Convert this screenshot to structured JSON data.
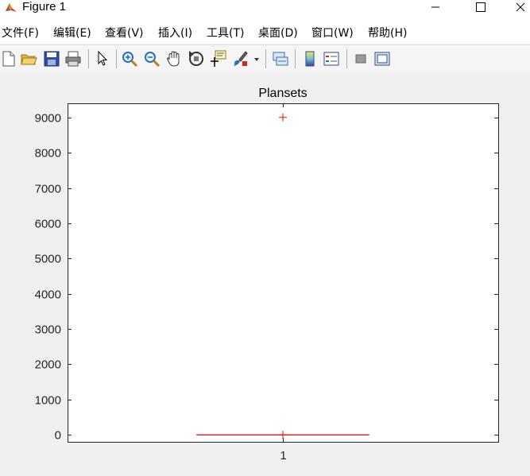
{
  "window": {
    "title": "Figure 1"
  },
  "menu": {
    "items": [
      {
        "label": "文件(F)"
      },
      {
        "label": "编辑(E)"
      },
      {
        "label": "查看(V)"
      },
      {
        "label": "插入(I)"
      },
      {
        "label": "工具(T)"
      },
      {
        "label": "桌面(D)"
      },
      {
        "label": "窗口(W)"
      },
      {
        "label": "帮助(H)"
      }
    ]
  },
  "toolbar": {
    "buttons": [
      {
        "icon": "new-figure-icon"
      },
      {
        "icon": "open-file-icon"
      },
      {
        "icon": "save-icon"
      },
      {
        "icon": "print-icon"
      },
      {
        "icon": "edit-plot-arrow-icon"
      },
      {
        "icon": "zoom-in-icon"
      },
      {
        "icon": "zoom-out-icon"
      },
      {
        "icon": "pan-hand-icon"
      },
      {
        "icon": "rotate-3d-icon"
      },
      {
        "icon": "data-cursor-icon"
      },
      {
        "icon": "brush-icon"
      },
      {
        "icon": "brush-dropdown-icon"
      },
      {
        "icon": "link-plot-icon"
      },
      {
        "icon": "colorbar-icon"
      },
      {
        "icon": "legend-icon"
      },
      {
        "icon": "hide-plot-tools-icon"
      },
      {
        "icon": "show-plot-tools-icon"
      }
    ]
  },
  "chart_data": {
    "type": "box",
    "title": "Plansets",
    "xlabel": "",
    "ylabel": "",
    "categories": [
      "1"
    ],
    "xlim": [
      0.5,
      1.5
    ],
    "ylim": [
      -200,
      9400
    ],
    "yticks": [
      0,
      1000,
      2000,
      3000,
      4000,
      5000,
      6000,
      7000,
      8000,
      9000
    ],
    "ytick_labels": [
      "0",
      "1000",
      "2000",
      "3000",
      "4000",
      "5000",
      "6000",
      "7000",
      "8000",
      "9000"
    ],
    "xtick_labels": [
      "1"
    ],
    "box": {
      "x": 1,
      "q1": 0,
      "median": 0,
      "q3": 0,
      "whisker_low": 0,
      "whisker_high": 0,
      "box_halfwidth": 0.05
    },
    "outliers": [
      {
        "x": 1,
        "y": 9000
      },
      {
        "x": 1,
        "y": 0
      }
    ],
    "colors": {
      "box": "#d62728",
      "outlier": "#ff0000",
      "axis": "#262626"
    }
  }
}
